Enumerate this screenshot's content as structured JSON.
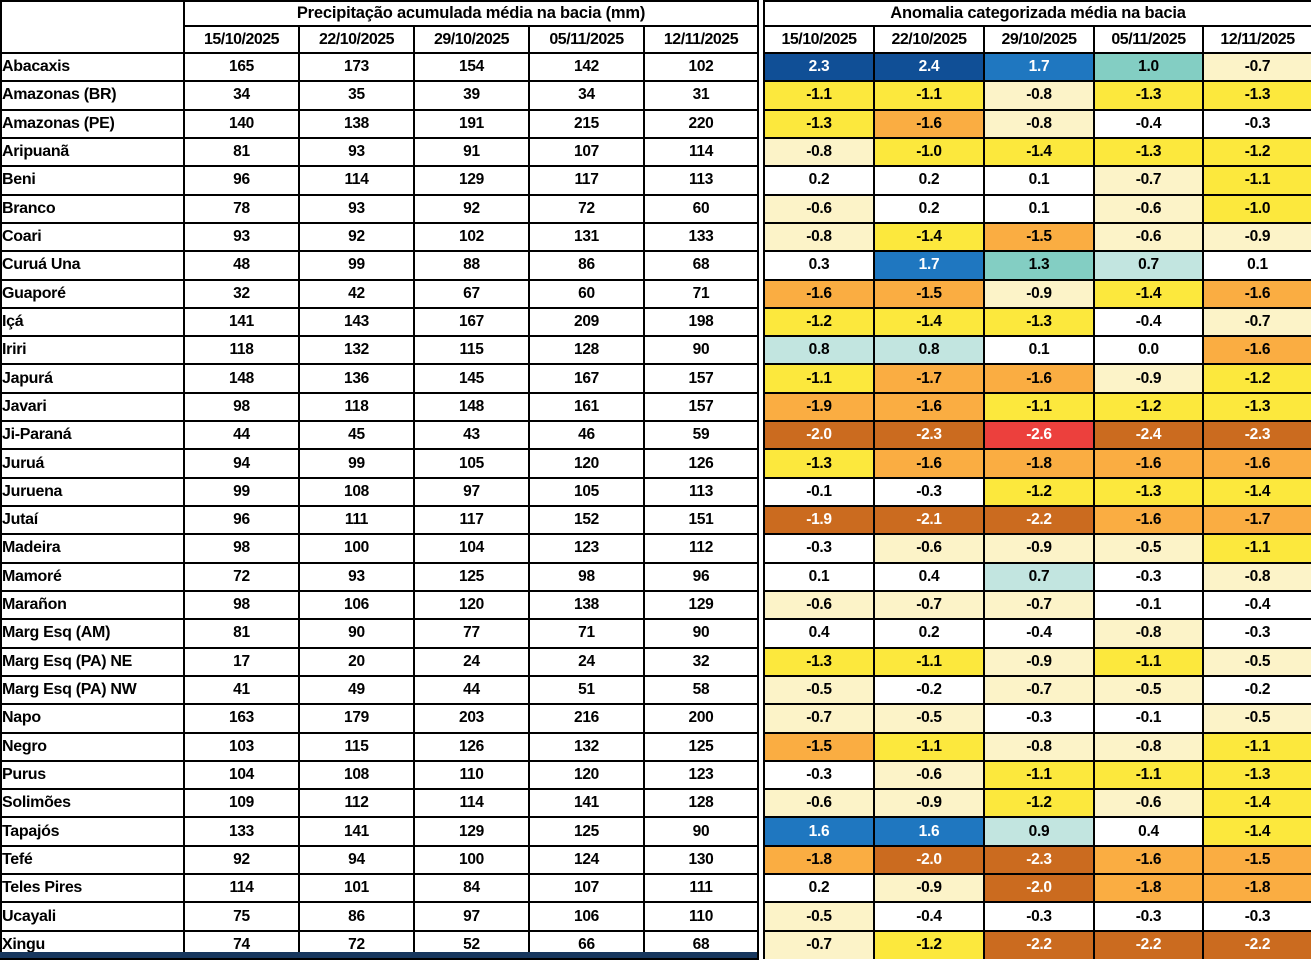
{
  "colors": {
    "navy": "#104F96",
    "blue": "#1F77C0",
    "teal": "#83CEC3",
    "paleteal": "#C2E5E0",
    "white": "#FFFFFF",
    "cream": "#FCF3C8",
    "yellow": "#FCE83D",
    "orange": "#FAAD42",
    "darkorange": "#CB6B1F",
    "red": "#EC403D",
    "border": "#000000",
    "bottom_strip": "#17375E",
    "light_text": "#FFFFFF",
    "dark_text": "#000000"
  },
  "light_text_categories": [
    "navy",
    "blue",
    "darkorange",
    "red"
  ],
  "chart_data": [
    {
      "type": "table",
      "title": "Precipitação acumulada média na bacia (mm)",
      "columns": [
        "15/10/2025",
        "22/10/2025",
        "29/10/2025",
        "05/11/2025",
        "12/11/2025"
      ],
      "rows": [
        {
          "basin": "Abacaxis",
          "values": [
            "165",
            "173",
            "154",
            "142",
            "102"
          ]
        },
        {
          "basin": "Amazonas (BR)",
          "values": [
            "34",
            "35",
            "39",
            "34",
            "31"
          ]
        },
        {
          "basin": "Amazonas (PE)",
          "values": [
            "140",
            "138",
            "191",
            "215",
            "220"
          ]
        },
        {
          "basin": "Aripuanã",
          "values": [
            "81",
            "93",
            "91",
            "107",
            "114"
          ]
        },
        {
          "basin": "Beni",
          "values": [
            "96",
            "114",
            "129",
            "117",
            "113"
          ]
        },
        {
          "basin": "Branco",
          "values": [
            "78",
            "93",
            "92",
            "72",
            "60"
          ]
        },
        {
          "basin": "Coari",
          "values": [
            "93",
            "92",
            "102",
            "131",
            "133"
          ]
        },
        {
          "basin": "Curuá Una",
          "values": [
            "48",
            "99",
            "88",
            "86",
            "68"
          ]
        },
        {
          "basin": "Guaporé",
          "values": [
            "32",
            "42",
            "67",
            "60",
            "71"
          ]
        },
        {
          "basin": "Içá",
          "values": [
            "141",
            "143",
            "167",
            "209",
            "198"
          ]
        },
        {
          "basin": "Iriri",
          "values": [
            "118",
            "132",
            "115",
            "128",
            "90"
          ]
        },
        {
          "basin": "Japurá",
          "values": [
            "148",
            "136",
            "145",
            "167",
            "157"
          ]
        },
        {
          "basin": "Javari",
          "values": [
            "98",
            "118",
            "148",
            "161",
            "157"
          ]
        },
        {
          "basin": "Ji-Paraná",
          "values": [
            "44",
            "45",
            "43",
            "46",
            "59"
          ]
        },
        {
          "basin": "Juruá",
          "values": [
            "94",
            "99",
            "105",
            "120",
            "126"
          ]
        },
        {
          "basin": "Juruena",
          "values": [
            "99",
            "108",
            "97",
            "105",
            "113"
          ]
        },
        {
          "basin": "Jutaí",
          "values": [
            "96",
            "111",
            "117",
            "152",
            "151"
          ]
        },
        {
          "basin": "Madeira",
          "values": [
            "98",
            "100",
            "104",
            "123",
            "112"
          ]
        },
        {
          "basin": "Mamoré",
          "values": [
            "72",
            "93",
            "125",
            "98",
            "96"
          ]
        },
        {
          "basin": "Marañon",
          "values": [
            "98",
            "106",
            "120",
            "138",
            "129"
          ]
        },
        {
          "basin": "Marg Esq (AM)",
          "values": [
            "81",
            "90",
            "77",
            "71",
            "90"
          ]
        },
        {
          "basin": "Marg Esq (PA) NE",
          "values": [
            "17",
            "20",
            "24",
            "24",
            "32"
          ]
        },
        {
          "basin": "Marg Esq (PA) NW",
          "values": [
            "41",
            "49",
            "44",
            "51",
            "58"
          ]
        },
        {
          "basin": "Napo",
          "values": [
            "163",
            "179",
            "203",
            "216",
            "200"
          ]
        },
        {
          "basin": "Negro",
          "values": [
            "103",
            "115",
            "126",
            "132",
            "125"
          ]
        },
        {
          "basin": "Purus",
          "values": [
            "104",
            "108",
            "110",
            "120",
            "123"
          ]
        },
        {
          "basin": "Solimões",
          "values": [
            "109",
            "112",
            "114",
            "141",
            "128"
          ]
        },
        {
          "basin": "Tapajós",
          "values": [
            "133",
            "141",
            "129",
            "125",
            "90"
          ]
        },
        {
          "basin": "Tefé",
          "values": [
            "92",
            "94",
            "100",
            "124",
            "130"
          ]
        },
        {
          "basin": "Teles Pires",
          "values": [
            "114",
            "101",
            "84",
            "107",
            "111"
          ]
        },
        {
          "basin": "Ucayali",
          "values": [
            "75",
            "86",
            "97",
            "106",
            "110"
          ]
        },
        {
          "basin": "Xingu",
          "values": [
            "74",
            "72",
            "52",
            "66",
            "68"
          ]
        }
      ]
    },
    {
      "type": "heatmap",
      "title": "Anomalia categorizada média na bacia",
      "columns": [
        "15/10/2025",
        "22/10/2025",
        "29/10/2025",
        "05/11/2025",
        "12/11/2025"
      ],
      "rows": [
        {
          "basin": "Abacaxis",
          "values": [
            "2.3",
            "2.4",
            "1.7",
            "1.0",
            "-0.7"
          ],
          "categories": [
            "navy",
            "navy",
            "blue",
            "teal",
            "cream"
          ]
        },
        {
          "basin": "Amazonas (BR)",
          "values": [
            "-1.1",
            "-1.1",
            "-0.8",
            "-1.3",
            "-1.3"
          ],
          "categories": [
            "yellow",
            "yellow",
            "cream",
            "yellow",
            "yellow"
          ]
        },
        {
          "basin": "Amazonas (PE)",
          "values": [
            "-1.3",
            "-1.6",
            "-0.8",
            "-0.4",
            "-0.3"
          ],
          "categories": [
            "yellow",
            "orange",
            "cream",
            "white",
            "white"
          ]
        },
        {
          "basin": "Aripuanã",
          "values": [
            "-0.8",
            "-1.0",
            "-1.4",
            "-1.3",
            "-1.2"
          ],
          "categories": [
            "cream",
            "yellow",
            "yellow",
            "yellow",
            "yellow"
          ]
        },
        {
          "basin": "Beni",
          "values": [
            "0.2",
            "0.2",
            "0.1",
            "-0.7",
            "-1.1"
          ],
          "categories": [
            "white",
            "white",
            "white",
            "cream",
            "yellow"
          ]
        },
        {
          "basin": "Branco",
          "values": [
            "-0.6",
            "0.2",
            "0.1",
            "-0.6",
            "-1.0"
          ],
          "categories": [
            "cream",
            "white",
            "white",
            "cream",
            "yellow"
          ]
        },
        {
          "basin": "Coari",
          "values": [
            "-0.8",
            "-1.4",
            "-1.5",
            "-0.6",
            "-0.9"
          ],
          "categories": [
            "cream",
            "yellow",
            "orange",
            "cream",
            "cream"
          ]
        },
        {
          "basin": "Curuá Una",
          "values": [
            "0.3",
            "1.7",
            "1.3",
            "0.7",
            "0.1"
          ],
          "categories": [
            "white",
            "blue",
            "teal",
            "paleteal",
            "white"
          ]
        },
        {
          "basin": "Guaporé",
          "values": [
            "-1.6",
            "-1.5",
            "-0.9",
            "-1.4",
            "-1.6"
          ],
          "categories": [
            "orange",
            "orange",
            "cream",
            "yellow",
            "orange"
          ]
        },
        {
          "basin": "Içá",
          "values": [
            "-1.2",
            "-1.4",
            "-1.3",
            "-0.4",
            "-0.7"
          ],
          "categories": [
            "yellow",
            "yellow",
            "yellow",
            "white",
            "cream"
          ]
        },
        {
          "basin": "Iriri",
          "values": [
            "0.8",
            "0.8",
            "0.1",
            "0.0",
            "-1.6"
          ],
          "categories": [
            "paleteal",
            "paleteal",
            "white",
            "white",
            "orange"
          ]
        },
        {
          "basin": "Japurá",
          "values": [
            "-1.1",
            "-1.7",
            "-1.6",
            "-0.9",
            "-1.2"
          ],
          "categories": [
            "yellow",
            "orange",
            "orange",
            "cream",
            "yellow"
          ]
        },
        {
          "basin": "Javari",
          "values": [
            "-1.9",
            "-1.6",
            "-1.1",
            "-1.2",
            "-1.3"
          ],
          "categories": [
            "orange",
            "orange",
            "yellow",
            "yellow",
            "yellow"
          ]
        },
        {
          "basin": "Ji-Paraná",
          "values": [
            "-2.0",
            "-2.3",
            "-2.6",
            "-2.4",
            "-2.3"
          ],
          "categories": [
            "darkorange",
            "darkorange",
            "red",
            "darkorange",
            "darkorange"
          ]
        },
        {
          "basin": "Juruá",
          "values": [
            "-1.3",
            "-1.6",
            "-1.8",
            "-1.6",
            "-1.6"
          ],
          "categories": [
            "yellow",
            "orange",
            "orange",
            "orange",
            "orange"
          ]
        },
        {
          "basin": "Juruena",
          "values": [
            "-0.1",
            "-0.3",
            "-1.2",
            "-1.3",
            "-1.4"
          ],
          "categories": [
            "white",
            "white",
            "yellow",
            "yellow",
            "yellow"
          ]
        },
        {
          "basin": "Jutaí",
          "values": [
            "-1.9",
            "-2.1",
            "-2.2",
            "-1.6",
            "-1.7"
          ],
          "categories": [
            "darkorange",
            "darkorange",
            "darkorange",
            "orange",
            "orange"
          ]
        },
        {
          "basin": "Madeira",
          "values": [
            "-0.3",
            "-0.6",
            "-0.9",
            "-0.5",
            "-1.1"
          ],
          "categories": [
            "white",
            "cream",
            "cream",
            "cream",
            "yellow"
          ]
        },
        {
          "basin": "Mamoré",
          "values": [
            "0.1",
            "0.4",
            "0.7",
            "-0.3",
            "-0.8"
          ],
          "categories": [
            "white",
            "white",
            "paleteal",
            "white",
            "cream"
          ]
        },
        {
          "basin": "Marañon",
          "values": [
            "-0.6",
            "-0.7",
            "-0.7",
            "-0.1",
            "-0.4"
          ],
          "categories": [
            "cream",
            "cream",
            "cream",
            "white",
            "white"
          ]
        },
        {
          "basin": "Marg Esq (AM)",
          "values": [
            "0.4",
            "0.2",
            "-0.4",
            "-0.8",
            "-0.3"
          ],
          "categories": [
            "white",
            "white",
            "white",
            "cream",
            "white"
          ]
        },
        {
          "basin": "Marg Esq (PA) NE",
          "values": [
            "-1.3",
            "-1.1",
            "-0.9",
            "-1.1",
            "-0.5"
          ],
          "categories": [
            "yellow",
            "yellow",
            "cream",
            "yellow",
            "cream"
          ]
        },
        {
          "basin": "Marg Esq (PA) NW",
          "values": [
            "-0.5",
            "-0.2",
            "-0.7",
            "-0.5",
            "-0.2"
          ],
          "categories": [
            "cream",
            "white",
            "cream",
            "cream",
            "white"
          ]
        },
        {
          "basin": "Napo",
          "values": [
            "-0.7",
            "-0.5",
            "-0.3",
            "-0.1",
            "-0.5"
          ],
          "categories": [
            "cream",
            "cream",
            "white",
            "white",
            "cream"
          ]
        },
        {
          "basin": "Negro",
          "values": [
            "-1.5",
            "-1.1",
            "-0.8",
            "-0.8",
            "-1.1"
          ],
          "categories": [
            "orange",
            "yellow",
            "cream",
            "cream",
            "yellow"
          ]
        },
        {
          "basin": "Purus",
          "values": [
            "-0.3",
            "-0.6",
            "-1.1",
            "-1.1",
            "-1.3"
          ],
          "categories": [
            "white",
            "cream",
            "yellow",
            "yellow",
            "yellow"
          ]
        },
        {
          "basin": "Solimões",
          "values": [
            "-0.6",
            "-0.9",
            "-1.2",
            "-0.6",
            "-1.4"
          ],
          "categories": [
            "cream",
            "cream",
            "yellow",
            "cream",
            "yellow"
          ]
        },
        {
          "basin": "Tapajós",
          "values": [
            "1.6",
            "1.6",
            "0.9",
            "0.4",
            "-1.4"
          ],
          "categories": [
            "blue",
            "blue",
            "paleteal",
            "white",
            "yellow"
          ]
        },
        {
          "basin": "Tefé",
          "values": [
            "-1.8",
            "-2.0",
            "-2.3",
            "-1.6",
            "-1.5"
          ],
          "categories": [
            "orange",
            "darkorange",
            "darkorange",
            "orange",
            "orange"
          ]
        },
        {
          "basin": "Teles Pires",
          "values": [
            "0.2",
            "-0.9",
            "-2.0",
            "-1.8",
            "-1.8"
          ],
          "categories": [
            "white",
            "cream",
            "darkorange",
            "orange",
            "orange"
          ]
        },
        {
          "basin": "Ucayali",
          "values": [
            "-0.5",
            "-0.4",
            "-0.3",
            "-0.3",
            "-0.3"
          ],
          "categories": [
            "cream",
            "white",
            "white",
            "white",
            "white"
          ]
        },
        {
          "basin": "Xingu",
          "values": [
            "-0.7",
            "-1.2",
            "-2.2",
            "-2.2",
            "-2.2"
          ],
          "categories": [
            "cream",
            "yellow",
            "darkorange",
            "darkorange",
            "darkorange"
          ]
        }
      ]
    }
  ]
}
